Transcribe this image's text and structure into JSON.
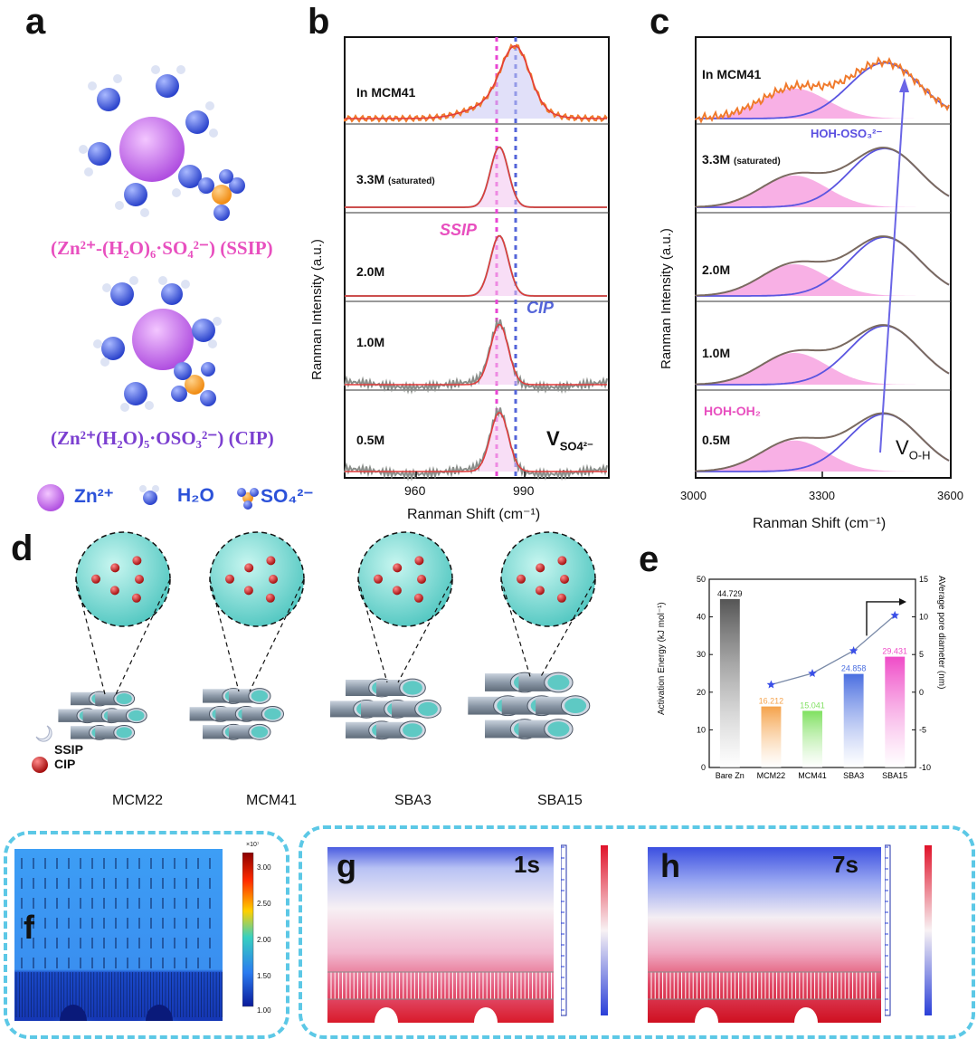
{
  "panels": {
    "a": {
      "label": "a",
      "formula_ssip": "(Zn²⁺-(H₂O)₆·SO₄²⁻) (SSIP)",
      "formula_cip": "(Zn²⁺(H₂O)₅·OSO₃²⁻) (CIP)",
      "legend": {
        "zn": "Zn²⁺",
        "h2o": "H₂O",
        "so4": "SO₄²⁻"
      }
    },
    "b": {
      "label": "b",
      "ylabel": "Ranman Intensity (a.u.)",
      "xlabel": "Ranman Shift (cm⁻¹)",
      "rows": [
        "In MCM41",
        "3.3M",
        "2.0M",
        "1.0M",
        "0.5M"
      ],
      "row2_sub": "(saturated)",
      "ssip": "SSIP",
      "cip": "CIP",
      "vlabel": "V",
      "vsub": "SO4²⁻",
      "xticks": [
        "960",
        "990"
      ]
    },
    "c": {
      "label": "c",
      "ylabel": "Ranman Intensity (a.u.)",
      "xlabel": "Ranman Shift (cm⁻¹)",
      "rows": [
        "In MCM41",
        "3.3M",
        "2.0M",
        "1.0M",
        "0.5M"
      ],
      "row2_sub": "(saturated)",
      "hoh_oso3": "HOH-OSO₃²⁻",
      "hoh_oh2": "HOH-OH₂",
      "voh": "V",
      "voh_sub": "O-H",
      "xticks": [
        "3000",
        "3300",
        "3600"
      ]
    },
    "d": {
      "label": "d",
      "legend_ssip": "SSIP",
      "legend_cip": "CIP",
      "names": [
        "MCM22",
        "MCM41",
        "SBA3",
        "SBA15"
      ]
    },
    "e": {
      "label": "e",
      "ylabel_left": "Activation Energy (kJ mol⁻¹)",
      "ylabel_right": "AVerage pore diameter (nm)",
      "yticks_left": [
        "0",
        "10",
        "20",
        "30",
        "40",
        "50"
      ],
      "yticks_right": [
        "-10",
        "-5",
        "0",
        "5",
        "10",
        "15"
      ]
    },
    "f": {
      "label": "f",
      "colorbar_exp": "×10⁷",
      "ticks": [
        "3.00",
        "2.50",
        "2.00",
        "1.50",
        "1.00"
      ]
    },
    "g": {
      "label": "g",
      "time": "1s"
    },
    "h": {
      "label": "h",
      "time": "7s"
    }
  },
  "chart_data": {
    "type": "bar",
    "categories": [
      "Bare Zn",
      "MCM22",
      "MCM41",
      "SBA3",
      "SBA15"
    ],
    "series": [
      {
        "values": [
          44.729,
          16.212,
          15.041,
          24.858,
          29.431
        ],
        "labels": [
          "44.729",
          "16.212",
          "15.041",
          "24.858",
          "29.431"
        ]
      },
      {
        "values": [
          null,
          1.0,
          2.5,
          5.5,
          10.2
        ]
      }
    ],
    "ylabel": "Activation Energy (kJ mol⁻¹)",
    "y2label": "AVerage pore diameter (nm)",
    "ylim": [
      0,
      50
    ],
    "y2lim": [
      -10,
      15
    ],
    "colors": [
      "#555555",
      "#f5a24a",
      "#7fe060",
      "#4a6ee0",
      "#ef4bc7"
    ]
  }
}
